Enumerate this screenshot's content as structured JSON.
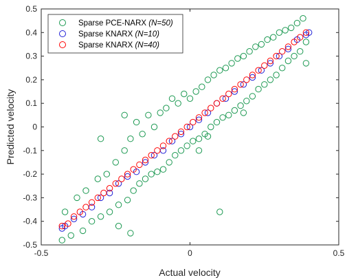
{
  "chart_data": {
    "type": "scatter",
    "xlabel": "Actual velocity",
    "ylabel": "Predicted velocity",
    "xlim": [
      -0.5,
      0.5
    ],
    "ylim": [
      -0.5,
      0.5
    ],
    "xticks": [
      -0.5,
      0,
      0.5
    ],
    "yticks": [
      -0.5,
      -0.4,
      -0.3,
      -0.2,
      -0.1,
      0,
      0.1,
      0.2,
      0.3,
      0.4,
      0.5
    ],
    "xtick_labels": [
      "-0.5",
      "0",
      "0.5"
    ],
    "ytick_labels": [
      "-0.5",
      "-0.4",
      "-0.3",
      "-0.2",
      "-0.1",
      "0",
      "0.1",
      "0.2",
      "0.3",
      "0.4",
      "0.5"
    ],
    "marker": "open circle",
    "legend_position": "top-left",
    "grid": false,
    "series": [
      {
        "name": "Sparse PCE-NARX",
        "name_suffix": "(N=50)",
        "color": "#1a9850",
        "points": [
          [
            -0.43,
            -0.48
          ],
          [
            -0.42,
            -0.36
          ],
          [
            -0.4,
            -0.46
          ],
          [
            -0.38,
            -0.3
          ],
          [
            -0.36,
            -0.44
          ],
          [
            -0.35,
            -0.27
          ],
          [
            -0.33,
            -0.4
          ],
          [
            -0.31,
            -0.22
          ],
          [
            -0.3,
            -0.38
          ],
          [
            -0.28,
            -0.2
          ],
          [
            -0.27,
            -0.36
          ],
          [
            -0.25,
            -0.15
          ],
          [
            -0.24,
            -0.33
          ],
          [
            -0.22,
            -0.1
          ],
          [
            -0.21,
            -0.31
          ],
          [
            -0.2,
            -0.05
          ],
          [
            -0.19,
            -0.27
          ],
          [
            -0.18,
            0.02
          ],
          [
            -0.17,
            -0.24
          ],
          [
            -0.16,
            -0.03
          ],
          [
            -0.15,
            -0.22
          ],
          [
            -0.14,
            0.05
          ],
          [
            -0.13,
            -0.2
          ],
          [
            -0.12,
            0.0
          ],
          [
            -0.11,
            -0.19
          ],
          [
            -0.1,
            0.06
          ],
          [
            -0.09,
            -0.18
          ],
          [
            -0.08,
            0.08
          ],
          [
            -0.07,
            -0.15
          ],
          [
            -0.06,
            0.12
          ],
          [
            -0.05,
            -0.12
          ],
          [
            -0.04,
            0.1
          ],
          [
            -0.03,
            -0.1
          ],
          [
            -0.02,
            0.14
          ],
          [
            -0.01,
            -0.08
          ],
          [
            0.0,
            0.12
          ],
          [
            0.01,
            -0.06
          ],
          [
            0.02,
            0.15
          ],
          [
            0.03,
            -0.05
          ],
          [
            0.04,
            0.17
          ],
          [
            0.05,
            -0.03
          ],
          [
            0.06,
            0.2
          ],
          [
            0.07,
            0.0
          ],
          [
            0.08,
            0.22
          ],
          [
            0.09,
            0.02
          ],
          [
            0.1,
            0.24
          ],
          [
            0.11,
            0.04
          ],
          [
            0.12,
            0.25
          ],
          [
            0.13,
            0.05
          ],
          [
            0.14,
            0.27
          ],
          [
            0.15,
            0.07
          ],
          [
            0.16,
            0.29
          ],
          [
            0.17,
            0.09
          ],
          [
            0.18,
            0.3
          ],
          [
            0.19,
            0.11
          ],
          [
            0.2,
            0.32
          ],
          [
            0.21,
            0.13
          ],
          [
            0.22,
            0.34
          ],
          [
            0.23,
            0.16
          ],
          [
            0.24,
            0.35
          ],
          [
            0.25,
            0.18
          ],
          [
            0.26,
            0.37
          ],
          [
            0.27,
            0.2
          ],
          [
            0.28,
            0.38
          ],
          [
            0.29,
            0.22
          ],
          [
            0.3,
            0.4
          ],
          [
            0.31,
            0.25
          ],
          [
            0.32,
            0.41
          ],
          [
            0.33,
            0.28
          ],
          [
            0.34,
            0.42
          ],
          [
            0.35,
            0.3
          ],
          [
            0.36,
            0.44
          ],
          [
            0.37,
            0.32
          ],
          [
            0.38,
            0.46
          ],
          [
            0.39,
            0.36
          ],
          [
            0.39,
            0.27
          ],
          [
            -0.2,
            -0.45
          ],
          [
            -0.24,
            -0.42
          ],
          [
            0.1,
            -0.36
          ],
          [
            0.06,
            -0.04
          ],
          [
            0.03,
            -0.1
          ],
          [
            -0.3,
            -0.05
          ],
          [
            -0.22,
            0.05
          ],
          [
            0.18,
            0.06
          ]
        ]
      },
      {
        "name": "Sparse KNARX",
        "name_suffix": "(N=10)",
        "color": "#1f1fd6",
        "points": [
          [
            -0.43,
            -0.43
          ],
          [
            -0.42,
            -0.42
          ],
          [
            -0.39,
            -0.39
          ],
          [
            -0.36,
            -0.37
          ],
          [
            -0.33,
            -0.34
          ],
          [
            -0.3,
            -0.3
          ],
          [
            -0.27,
            -0.28
          ],
          [
            -0.24,
            -0.24
          ],
          [
            -0.21,
            -0.21
          ],
          [
            -0.18,
            -0.19
          ],
          [
            -0.15,
            -0.15
          ],
          [
            -0.12,
            -0.12
          ],
          [
            -0.09,
            -0.1
          ],
          [
            -0.06,
            -0.06
          ],
          [
            -0.03,
            -0.03
          ],
          [
            0.0,
            0.0
          ],
          [
            0.03,
            0.03
          ],
          [
            0.06,
            0.06
          ],
          [
            0.09,
            0.1
          ],
          [
            0.12,
            0.12
          ],
          [
            0.15,
            0.15
          ],
          [
            0.18,
            0.18
          ],
          [
            0.21,
            0.21
          ],
          [
            0.24,
            0.24
          ],
          [
            0.27,
            0.27
          ],
          [
            0.3,
            0.3
          ],
          [
            0.33,
            0.33
          ],
          [
            0.36,
            0.37
          ],
          [
            0.39,
            0.39
          ],
          [
            0.4,
            0.4
          ]
        ]
      },
      {
        "name": "Sparse KNARX",
        "name_suffix": "(N=40)",
        "color": "#ff0000",
        "points": [
          [
            -0.43,
            -0.42
          ],
          [
            -0.41,
            -0.41
          ],
          [
            -0.39,
            -0.38
          ],
          [
            -0.37,
            -0.36
          ],
          [
            -0.35,
            -0.34
          ],
          [
            -0.33,
            -0.32
          ],
          [
            -0.31,
            -0.3
          ],
          [
            -0.29,
            -0.28
          ],
          [
            -0.27,
            -0.26
          ],
          [
            -0.25,
            -0.24
          ],
          [
            -0.23,
            -0.22
          ],
          [
            -0.21,
            -0.2
          ],
          [
            -0.19,
            -0.18
          ],
          [
            -0.17,
            -0.16
          ],
          [
            -0.15,
            -0.14
          ],
          [
            -0.13,
            -0.12
          ],
          [
            -0.11,
            -0.1
          ],
          [
            -0.09,
            -0.08
          ],
          [
            -0.07,
            -0.06
          ],
          [
            -0.05,
            -0.04
          ],
          [
            -0.03,
            -0.02
          ],
          [
            -0.01,
            0.0
          ],
          [
            0.01,
            0.02
          ],
          [
            0.03,
            0.04
          ],
          [
            0.05,
            0.06
          ],
          [
            0.07,
            0.08
          ],
          [
            0.09,
            0.1
          ],
          [
            0.11,
            0.12
          ],
          [
            0.13,
            0.14
          ],
          [
            0.15,
            0.16
          ],
          [
            0.17,
            0.18
          ],
          [
            0.19,
            0.2
          ],
          [
            0.21,
            0.22
          ],
          [
            0.23,
            0.24
          ],
          [
            0.25,
            0.26
          ],
          [
            0.27,
            0.28
          ],
          [
            0.29,
            0.3
          ],
          [
            0.31,
            0.32
          ],
          [
            0.33,
            0.34
          ],
          [
            0.35,
            0.36
          ],
          [
            0.37,
            0.38
          ],
          [
            0.39,
            0.4
          ]
        ]
      }
    ]
  }
}
